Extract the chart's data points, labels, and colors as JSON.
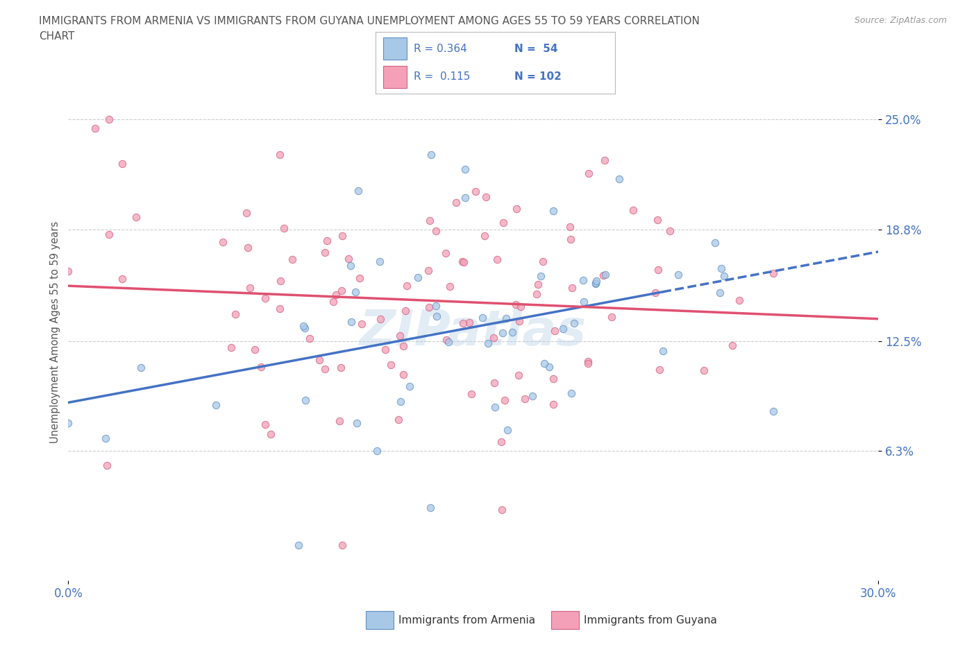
{
  "title_line1": "IMMIGRANTS FROM ARMENIA VS IMMIGRANTS FROM GUYANA UNEMPLOYMENT AMONG AGES 55 TO 59 YEARS CORRELATION",
  "title_line2": "CHART",
  "source_text": "Source: ZipAtlas.com",
  "ylabel": "Unemployment Among Ages 55 to 59 years",
  "xmin": 0.0,
  "xmax": 0.3,
  "ymin": -0.01,
  "ymax": 0.27,
  "ytick_vals": [
    0.063,
    0.125,
    0.188,
    0.25
  ],
  "ytick_labels": [
    "6.3%",
    "12.5%",
    "18.8%",
    "25.0%"
  ],
  "xtick_vals": [
    0.0,
    0.3
  ],
  "xtick_labels": [
    "0.0%",
    "30.0%"
  ],
  "armenia_R": 0.364,
  "armenia_N": 54,
  "guyana_R": 0.115,
  "guyana_N": 102,
  "armenia_color": "#a8c8e8",
  "guyana_color": "#f4a0b8",
  "armenia_edge_color": "#6090c0",
  "guyana_edge_color": "#d06080",
  "armenia_line_color": "#4472c4",
  "guyana_line_color": "#e05070",
  "legend_label_armenia": "Immigrants from Armenia",
  "legend_label_guyana": "Immigrants from Guyana",
  "watermark": "ZIPatlas",
  "background_color": "#ffffff",
  "grid_color": "#cccccc",
  "title_color": "#555555",
  "axis_label_color": "#555555",
  "tick_color": "#4472c4",
  "bottom_legend_text_color": "#333333"
}
